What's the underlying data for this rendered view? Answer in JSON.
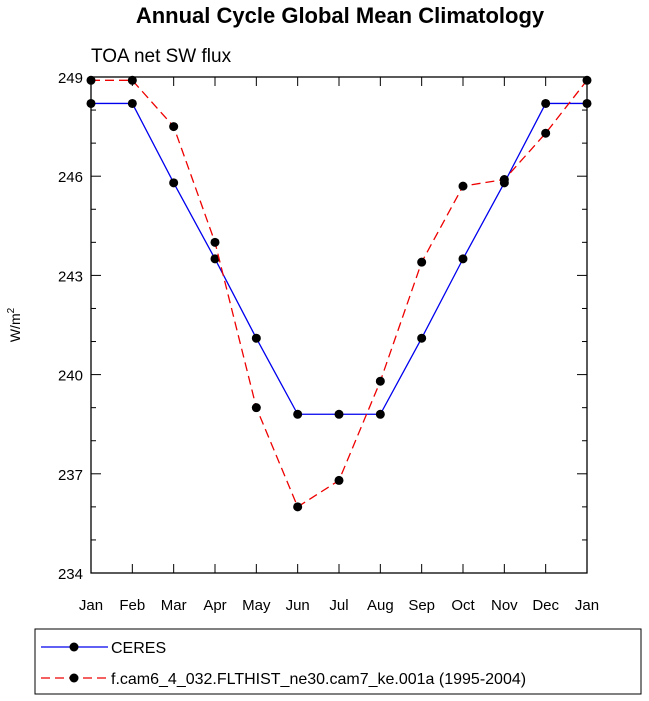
{
  "chart_data": {
    "type": "line",
    "title": "Annual Cycle Global Mean Climatology",
    "subtitle": "TOA net SW flux",
    "xlabel": "",
    "ylabel": "W/m",
    "ylabel_sup": "2",
    "categories": [
      "Jan",
      "Feb",
      "Mar",
      "Apr",
      "May",
      "Jun",
      "Jul",
      "Aug",
      "Sep",
      "Oct",
      "Nov",
      "Dec",
      "Jan"
    ],
    "ylim": [
      234,
      249
    ],
    "yticks": [
      234,
      237,
      240,
      243,
      246,
      249
    ],
    "ytick_labels": [
      "234",
      "237",
      "240",
      "243",
      "246",
      "249"
    ],
    "grid": false,
    "legend_position": "bottom",
    "series": [
      {
        "name": "CERES",
        "color": "#0000ee",
        "style": "solid",
        "values": [
          248.2,
          248.2,
          245.8,
          243.5,
          241.1,
          238.8,
          238.8,
          238.8,
          241.1,
          243.5,
          245.8,
          248.2,
          248.2
        ]
      },
      {
        "name": "f.cam6_4_032.FLTHIST_ne30.cam7_ke.001a (1995-2004)",
        "color": "#ee0000",
        "style": "dashed",
        "values": [
          248.9,
          248.9,
          247.5,
          244.0,
          239.0,
          236.0,
          236.8,
          239.8,
          243.4,
          245.7,
          245.9,
          247.3,
          248.9
        ]
      }
    ]
  }
}
